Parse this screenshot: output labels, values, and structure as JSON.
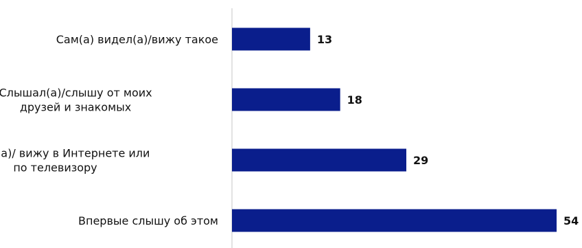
{
  "chart_data": {
    "type": "bar",
    "orientation": "horizontal",
    "categories": [
      [
        "Сам(а) видел(а)/вижу такое"
      ],
      [
        "Слышал(а)/слышу от моих",
        "друзей и знакомых"
      ],
      [
        "Видел(а)/ вижу в Интернете или",
        "по телевизору"
      ],
      [
        "Впервые слышу об этом"
      ]
    ],
    "values": [
      13,
      18,
      29,
      54
    ],
    "value_labels": [
      "13",
      "18",
      "29",
      "54"
    ],
    "xlim": [
      0,
      54
    ],
    "grid": false,
    "legend": "none",
    "bar_color": "#0A1E8C",
    "axis_color": "#D9D9D9"
  }
}
